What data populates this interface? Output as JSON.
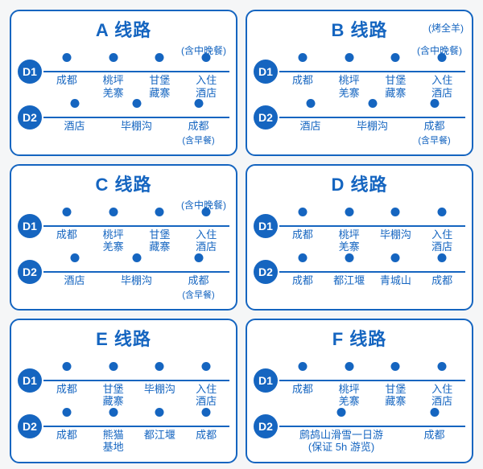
{
  "colors": {
    "primary": "#1565c0",
    "card_bg": "#ffffff",
    "page_bg": "#f5f6f7"
  },
  "routes": [
    {
      "id": "A",
      "title": "A 线路",
      "title_note": "",
      "sub_note": "(含中晚餐)",
      "days": [
        {
          "badge": "D1",
          "stops": [
            {
              "label": "成都"
            },
            {
              "label": "桃坪\n羌寨"
            },
            {
              "label": "甘堡\n藏寨"
            },
            {
              "label": "入住\n酒店"
            }
          ]
        },
        {
          "badge": "D2",
          "stops": [
            {
              "label": "酒店"
            },
            {
              "label": "毕棚沟"
            },
            {
              "label": "成都",
              "note": "(含早餐)"
            }
          ]
        }
      ]
    },
    {
      "id": "B",
      "title": "B 线路",
      "title_note": "(烤全羊)",
      "sub_note": "(含中晚餐)",
      "days": [
        {
          "badge": "D1",
          "stops": [
            {
              "label": "成都"
            },
            {
              "label": "桃坪\n羌寨"
            },
            {
              "label": "甘堡\n藏寨"
            },
            {
              "label": "入住\n酒店"
            }
          ]
        },
        {
          "badge": "D2",
          "stops": [
            {
              "label": "酒店"
            },
            {
              "label": "毕棚沟"
            },
            {
              "label": "成都",
              "note": "(含早餐)"
            }
          ]
        }
      ]
    },
    {
      "id": "C",
      "title": "C 线路",
      "title_note": "",
      "sub_note": "(含中晚餐)",
      "days": [
        {
          "badge": "D1",
          "stops": [
            {
              "label": "成都"
            },
            {
              "label": "桃坪\n羌寨"
            },
            {
              "label": "甘堡\n藏寨"
            },
            {
              "label": "入住\n酒店"
            }
          ]
        },
        {
          "badge": "D2",
          "stops": [
            {
              "label": "酒店"
            },
            {
              "label": "毕棚沟"
            },
            {
              "label": "成都",
              "note": "(含早餐)"
            }
          ]
        }
      ]
    },
    {
      "id": "D",
      "title": "D 线路",
      "title_note": "",
      "sub_note": "",
      "days": [
        {
          "badge": "D1",
          "stops": [
            {
              "label": "成都"
            },
            {
              "label": "桃坪\n羌寨"
            },
            {
              "label": "毕棚沟"
            },
            {
              "label": "入住\n酒店"
            }
          ]
        },
        {
          "badge": "D2",
          "stops": [
            {
              "label": "成都"
            },
            {
              "label": "都江堰"
            },
            {
              "label": "青城山"
            },
            {
              "label": "成都"
            }
          ]
        }
      ]
    },
    {
      "id": "E",
      "title": "E 线路",
      "title_note": "",
      "sub_note": "",
      "days": [
        {
          "badge": "D1",
          "stops": [
            {
              "label": "成都"
            },
            {
              "label": "甘堡\n藏寨"
            },
            {
              "label": "毕棚沟"
            },
            {
              "label": "入住\n酒店"
            }
          ]
        },
        {
          "badge": "D2",
          "stops": [
            {
              "label": "成都"
            },
            {
              "label": "熊猫\n基地"
            },
            {
              "label": "都江堰"
            },
            {
              "label": "成都"
            }
          ]
        }
      ]
    },
    {
      "id": "F",
      "title": "F 线路",
      "title_note": "",
      "sub_note": "",
      "days": [
        {
          "badge": "D1",
          "stops": [
            {
              "label": "成都"
            },
            {
              "label": "桃坪\n羌寨"
            },
            {
              "label": "甘堡\n藏寨"
            },
            {
              "label": "入住\n酒店"
            }
          ]
        },
        {
          "badge": "D2",
          "stops": [
            {
              "label": "鹧鸪山滑雪一日游\n(保证 5h 游览)",
              "wide": true
            },
            {
              "label": "成都"
            }
          ]
        }
      ]
    }
  ]
}
